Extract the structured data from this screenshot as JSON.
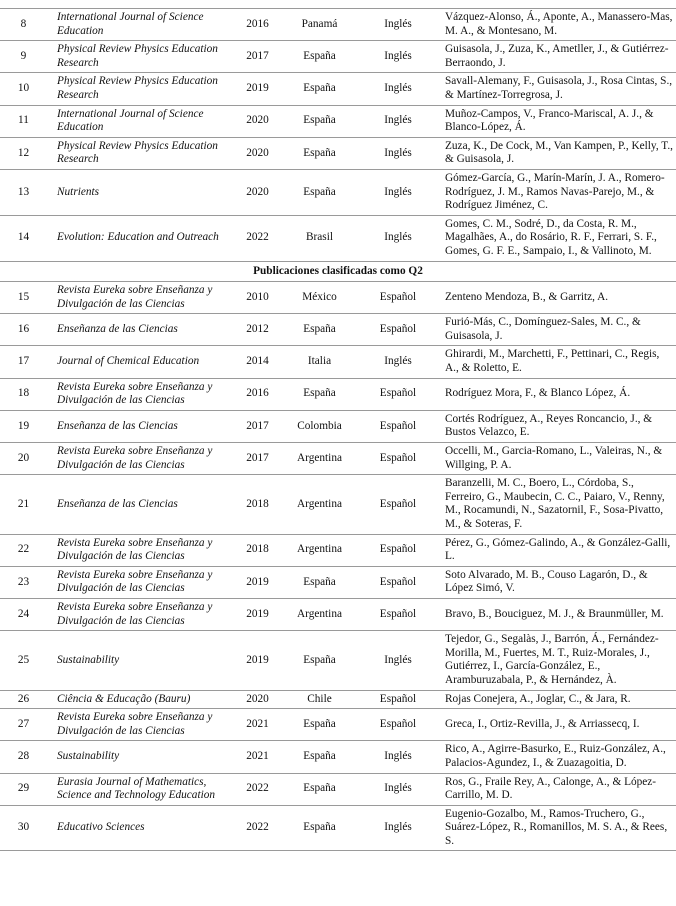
{
  "table": {
    "groups": [
      {
        "rows": [
          [
            "8",
            "International Journal of Science Education",
            "2016",
            "Panamá",
            "Inglés",
            "Vázquez-Alonso, Á., Aponte, A., Manassero-Mas, M. A., & Montesano, M."
          ],
          [
            "9",
            "Physical Review Physics Education Research",
            "2017",
            "España",
            "Inglés",
            "Guisasola, J., Zuza, K., Ametller, J., & Gutiérrez-Berraondo, J."
          ],
          [
            "10",
            "Physical Review Physics Education Research",
            "2019",
            "España",
            "Inglés",
            "Savall-Alemany, F., Guisasola, J., Rosa Cintas, S., & Martínez-Torregrosa, J."
          ],
          [
            "11",
            "International Journal of Science Education",
            "2020",
            "España",
            "Inglés",
            "Muñoz-Campos, V., Franco-Mariscal, A. J., & Blanco-López, Á."
          ],
          [
            "12",
            "Physical Review Physics Education Research",
            "2020",
            "España",
            "Inglés",
            "Zuza, K., De Cock, M., Van Kampen, P., Kelly, T., & Guisasola, J."
          ],
          [
            "13",
            "Nutrients",
            "2020",
            "España",
            "Inglés",
            "Gómez-García, G., Marín-Marín, J. A., Romero-Rodríguez, J. M., Ramos Navas-Parejo, M., & Rodríguez Jiménez, C."
          ],
          [
            "14",
            "Evolution: Education and Outreach",
            "2022",
            "Brasil",
            "Inglés",
            "Gomes, C. M., Sodré, D., da Costa, R. M., Magalhães, A., do Rosário, R. F., Ferrari, S. F., Gomes, G. F. E., Sampaio, I., & Vallinoto, M."
          ]
        ]
      },
      {
        "heading": "Publicaciones clasificadas como Q2",
        "rows": [
          [
            "15",
            "Revista Eureka sobre Enseñanza y Divulgación de las Ciencias",
            "2010",
            "México",
            "Español",
            "Zenteno Mendoza, B., & Garritz, A."
          ],
          [
            "16",
            "Enseñanza de las Ciencias",
            "2012",
            "España",
            "Español",
            "Furió-Más, C., Domínguez-Sales, M. C., & Guisasola, J."
          ],
          [
            "17",
            "Journal of Chemical Education",
            "2014",
            "Italia",
            "Inglés",
            "Ghirardi, M., Marchetti, F., Pettinari, C., Regis, A., & Roletto, E."
          ],
          [
            "18",
            "Revista Eureka sobre Enseñanza y Divulgación de las Ciencias",
            "2016",
            "España",
            "Español",
            "Rodríguez Mora, F., & Blanco López, Á."
          ],
          [
            "19",
            "Enseñanza de las Ciencias",
            "2017",
            "Colombia",
            "Español",
            "Cortés Rodríguez, A., Reyes Roncancio, J., & Bustos Velazco, E."
          ],
          [
            "20",
            "Revista Eureka sobre Enseñanza y Divulgación de las Ciencias",
            "2017",
            "Argentina",
            "Español",
            "Occelli, M., Garcia-Romano, L., Valeiras, N., & Willging, P. A."
          ],
          [
            "21",
            "Enseñanza de las Ciencias",
            "2018",
            "Argentina",
            "Español",
            "Baranzelli, M. C., Boero, L., Córdoba, S., Ferreiro, G., Maubecin, C. C., Paiaro, V., Renny, M., Rocamundi, N., Sazatornil, F., Sosa-Pivatto, M., & Soteras, F."
          ],
          [
            "22",
            "Revista Eureka sobre Enseñanza y Divulgación de las Ciencias",
            "2018",
            "Argentina",
            "Español",
            "Pérez, G., Gómez-Galindo, A., & González-Galli, L."
          ],
          [
            "23",
            "Revista Eureka sobre Enseñanza y Divulgación de las Ciencias",
            "2019",
            "España",
            "Español",
            "Soto Alvarado, M. B., Couso Lagarón, D., & López Simó, V."
          ],
          [
            "24",
            "Revista Eureka sobre Enseñanza y Divulgación de las Ciencias",
            "2019",
            "Argentina",
            "Español",
            "Bravo, B., Bouciguez, M. J., & Braunmüller, M."
          ],
          [
            "25",
            "Sustainability",
            "2019",
            "España",
            "Inglés",
            "Tejedor, G., Segalàs, J., Barrón, Á., Fernández-Morilla, M., Fuertes, M. T., Ruiz-Morales, J., Gutiérrez, I., García-González, E., Aramburuzabala, P., & Hernández, À."
          ],
          [
            "26",
            "Ciência & Educação (Bauru)",
            "2020",
            "Chile",
            "Español",
            "Rojas Conejera, A., Joglar, C., & Jara, R."
          ],
          [
            "27",
            "Revista Eureka sobre Enseñanza y Divulgación de las Ciencias",
            "2021",
            "España",
            "Español",
            "Greca, I., Ortiz-Revilla, J., & Arriassecq, I."
          ],
          [
            "28",
            "Sustainability",
            "2021",
            "España",
            "Inglés",
            "Rico, A., Agirre-Basurko, E., Ruiz-González, A., Palacios-Agundez, I., & Zuazagoitia, D."
          ],
          [
            "29",
            "Eurasia Journal of Mathematics, Science and Technology Education",
            "2022",
            "España",
            "Inglés",
            "Ros, G., Fraile Rey, A., Calonge, A., & López-Carrillo, M. D."
          ],
          [
            "30",
            "Educativo Sciences",
            "2022",
            "España",
            "Inglés",
            "Eugenio-Gozalbo, M., Ramos-Truchero, G., Suárez-López, R., Romanillos, M. S. A., & Rees, S."
          ]
        ]
      }
    ]
  }
}
